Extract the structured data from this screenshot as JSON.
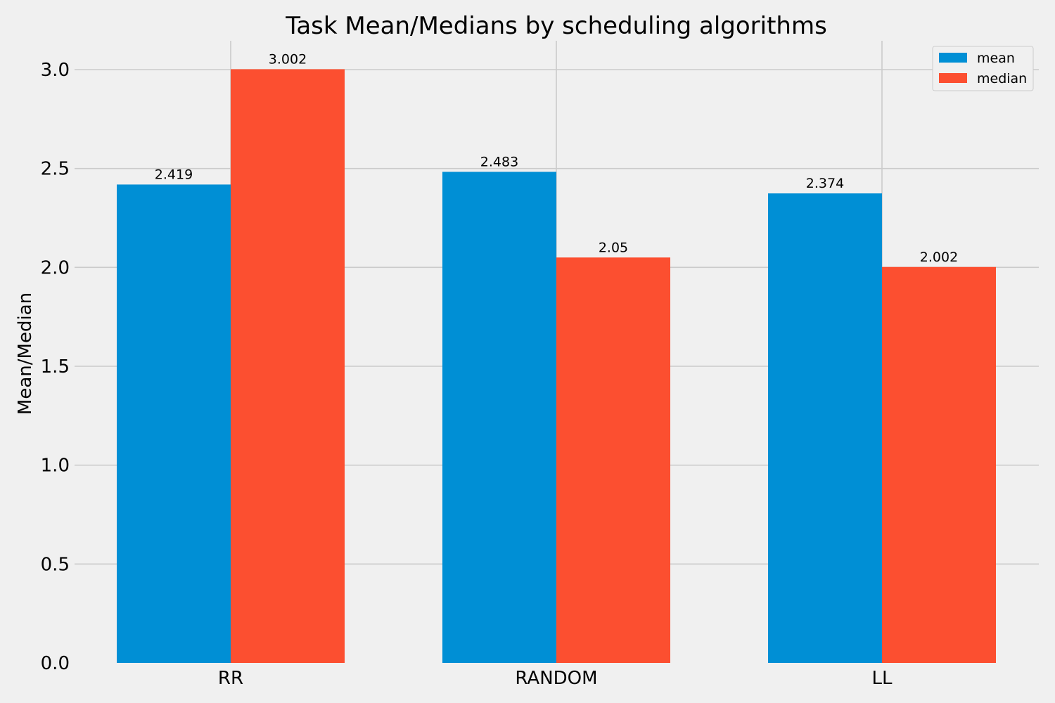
{
  "chart_data": {
    "type": "bar",
    "title": "Task Mean/Medians by scheduling algorithms",
    "xlabel": "",
    "ylabel": "Mean/Median",
    "categories": [
      "RR",
      "RANDOM",
      "LL"
    ],
    "series": [
      {
        "name": "mean",
        "values": [
          2.419,
          2.483,
          2.374
        ],
        "color": "#008fd5",
        "labels": [
          "2.419",
          "2.483",
          "2.374"
        ]
      },
      {
        "name": "median",
        "values": [
          3.002,
          2.05,
          2.002
        ],
        "color": "#fc4f30",
        "labels": [
          "3.002",
          "2.05",
          "2.002"
        ]
      }
    ],
    "ylim": [
      0,
      3.15
    ],
    "yticks": [
      0,
      0.5,
      1.0,
      1.5,
      2.0,
      2.5,
      3.0
    ],
    "ytick_labels": [
      "0.0",
      "0.5",
      "1.0",
      "1.5",
      "2.0",
      "2.5",
      "3.0"
    ],
    "grid": true,
    "legend_position": "top-right",
    "background": "#f0f0f0"
  }
}
